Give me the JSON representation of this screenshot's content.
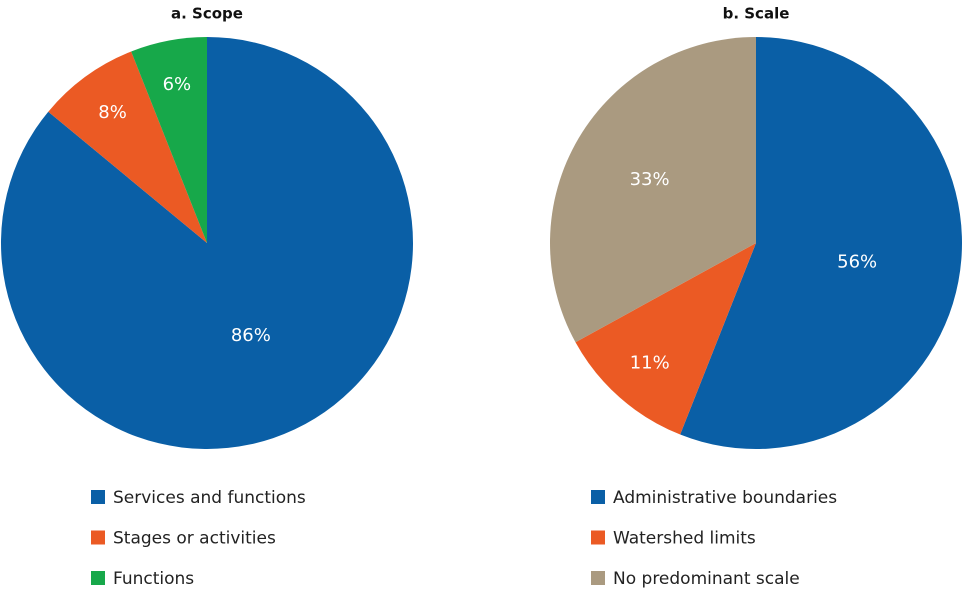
{
  "chart_data": [
    {
      "type": "pie",
      "title": "a. Scope",
      "categories": [
        "Services and functions",
        "Stages or activities",
        "Functions"
      ],
      "values": [
        86,
        8,
        6
      ],
      "value_labels": [
        "86%",
        "8%",
        "6%"
      ],
      "colors": [
        "#0a5fa6",
        "#eb5a24",
        "#17a84a"
      ]
    },
    {
      "type": "pie",
      "title": "b. Scale",
      "categories": [
        "Administrative boundaries",
        "Watershed limits",
        "No predominant scale"
      ],
      "values": [
        56,
        11,
        33
      ],
      "value_labels": [
        "56%",
        "11%",
        "33%"
      ],
      "colors": [
        "#0a5fa6",
        "#eb5a24",
        "#aa9a80"
      ]
    }
  ]
}
